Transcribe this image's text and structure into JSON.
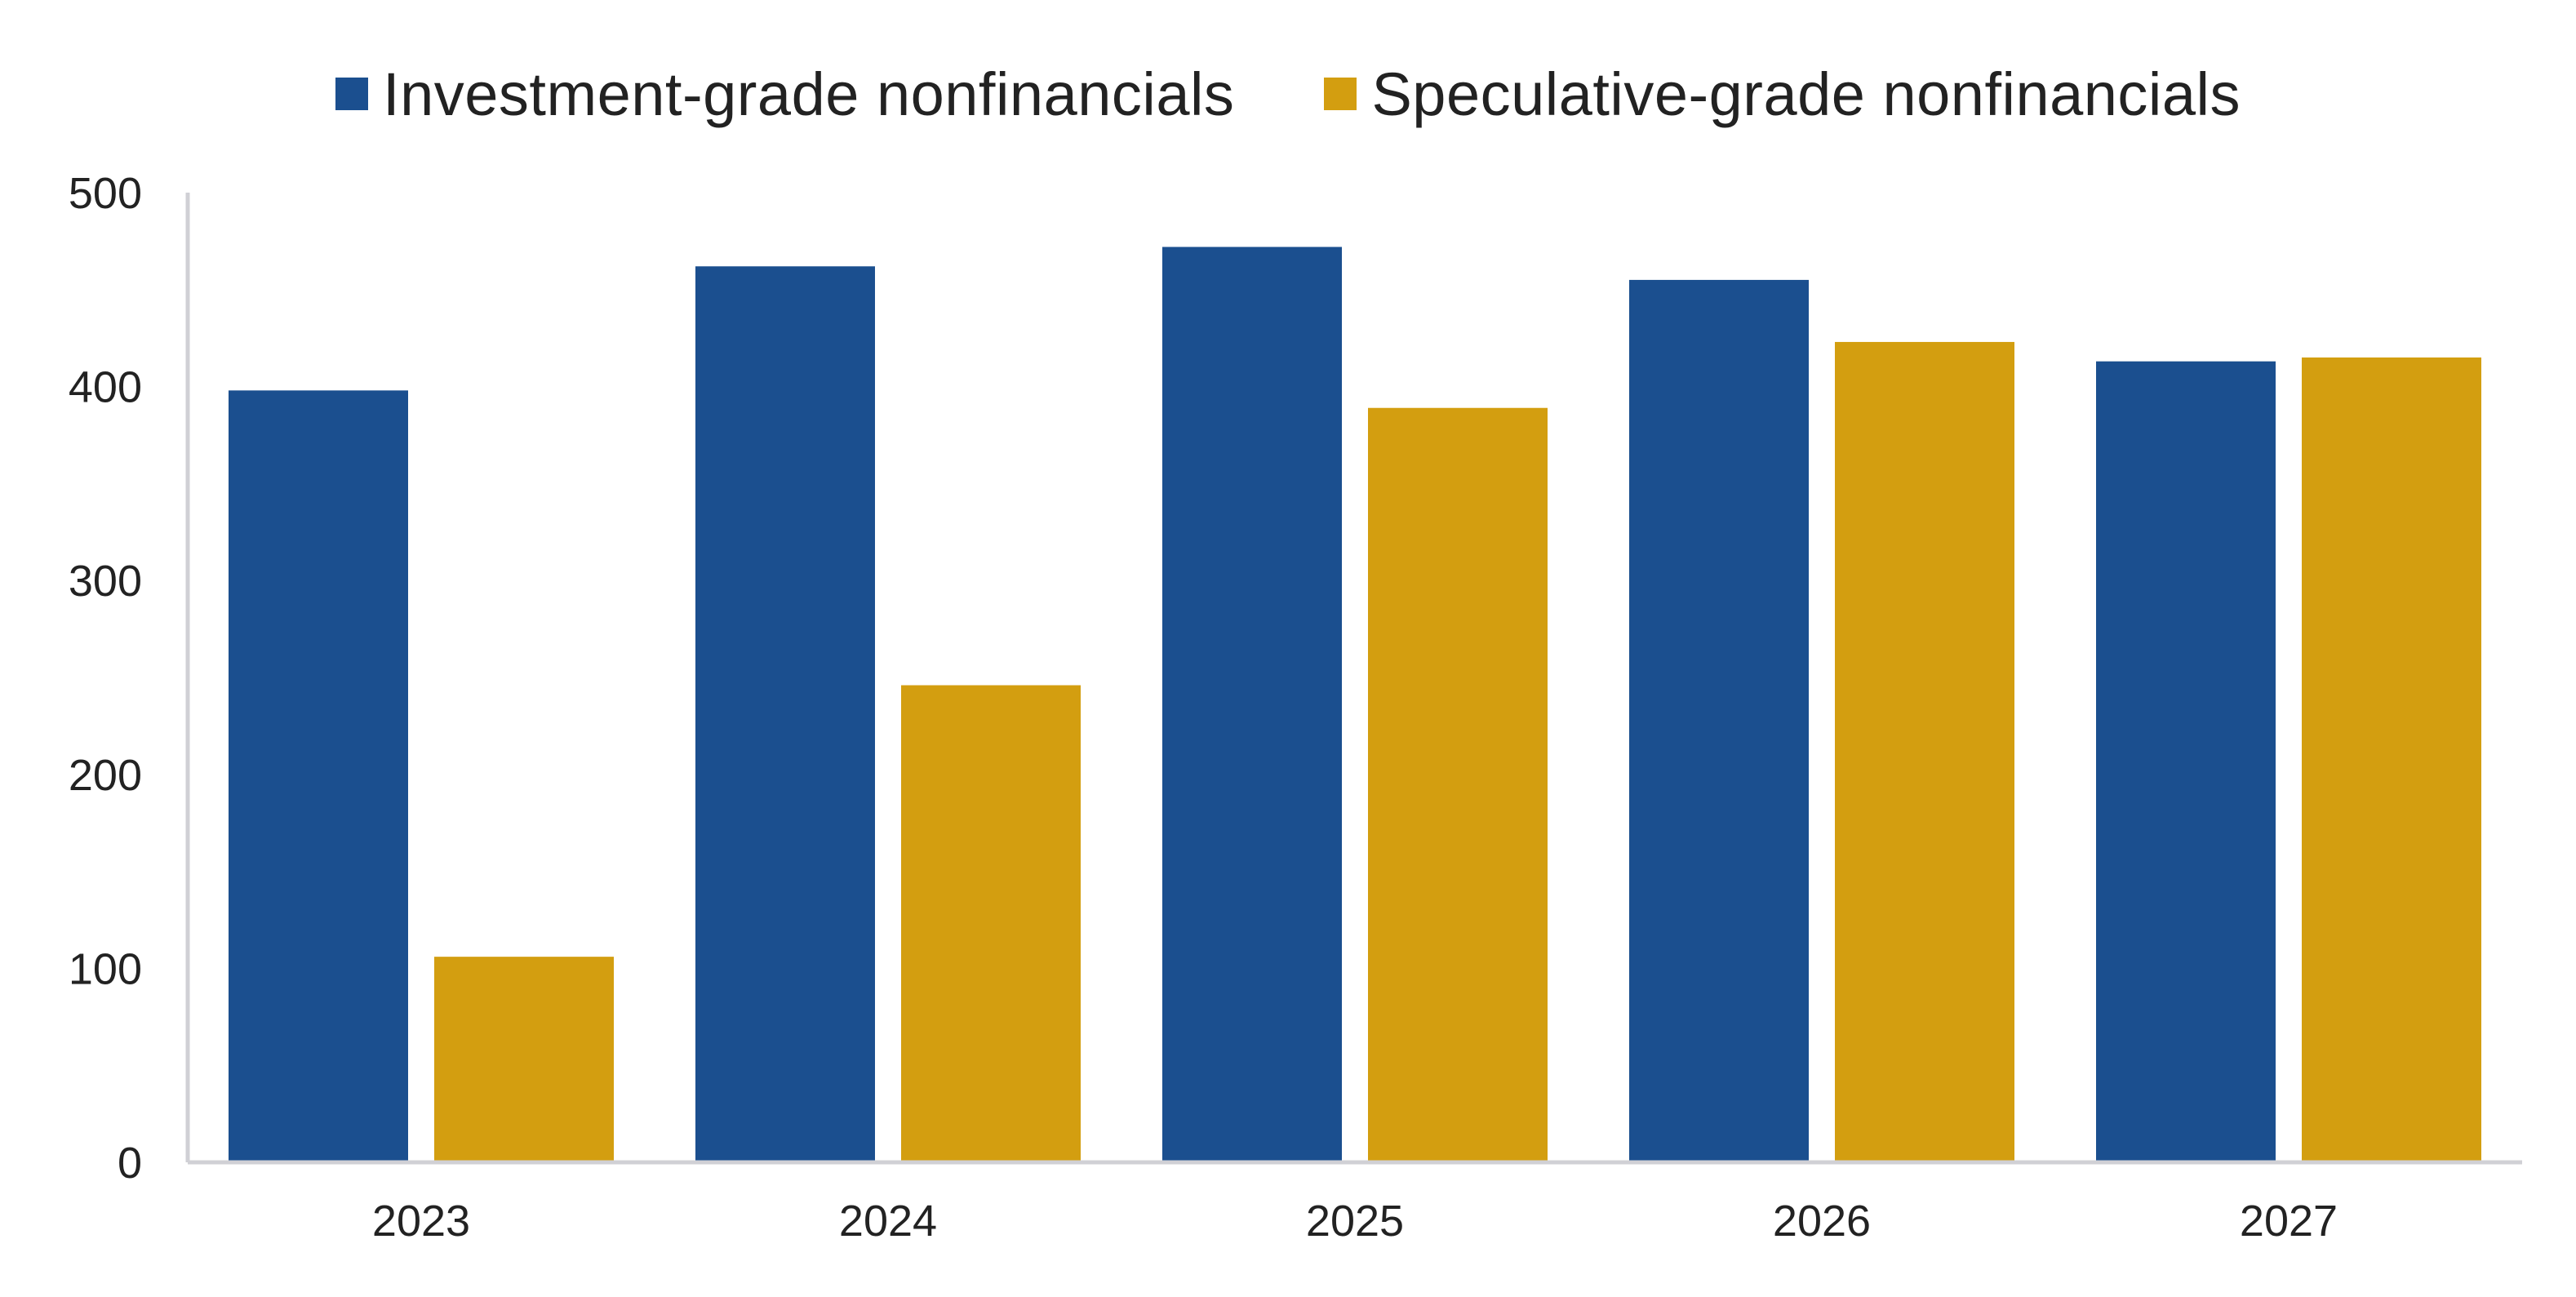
{
  "legend": {
    "series_0": "Investment-grade nonfinancials",
    "series_1": "Speculative-grade nonfinancials"
  },
  "colors": {
    "series_0": "#1b4f8f",
    "series_1": "#d39e10",
    "axis": "#d0d0d5"
  },
  "chart_data": {
    "type": "bar",
    "title": "",
    "xlabel": "",
    "ylabel": "",
    "categories": [
      "2023",
      "2024",
      "2025",
      "2026",
      "2027"
    ],
    "series": [
      {
        "name": "Investment-grade nonfinancials",
        "values": [
          398,
          462,
          472,
          455,
          413
        ]
      },
      {
        "name": "Speculative-grade nonfinancials",
        "values": [
          106,
          246,
          389,
          423,
          415
        ]
      }
    ],
    "ylim": [
      0,
      500
    ],
    "yticks": [
      "0",
      "100",
      "200",
      "300",
      "400",
      "500"
    ],
    "grid": false,
    "legend_position": "top-center"
  }
}
